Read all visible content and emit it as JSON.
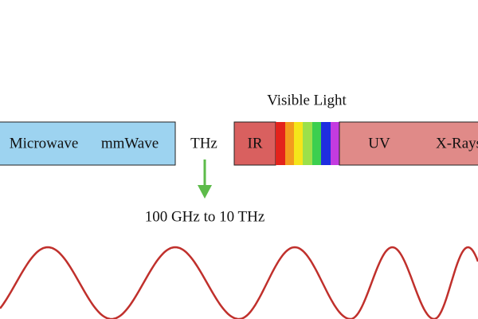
{
  "spectrum": {
    "bands": [
      "Microwave",
      "mmWave",
      "THz",
      "IR",
      "UV",
      "X-Rays"
    ],
    "visible_label": "Visible Light",
    "thz_range": "100 GHz to 10 THz"
  }
}
